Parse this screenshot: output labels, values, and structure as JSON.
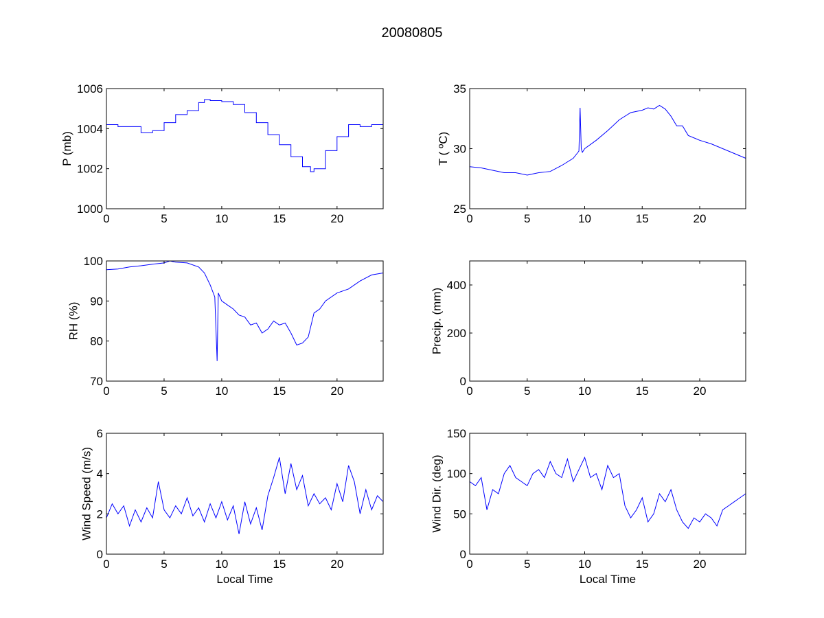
{
  "chart_data": [
    {
      "type": "line",
      "title": "20080805",
      "panels": [
        {
          "id": "pressure",
          "ylabel": "P (mb)",
          "xlabel": "",
          "xlim": [
            0,
            24
          ],
          "ylim": [
            1000,
            1006
          ],
          "xticks": [
            0,
            5,
            10,
            15,
            20
          ],
          "yticks": [
            1000,
            1002,
            1004,
            1006
          ],
          "x": [
            0,
            1,
            2,
            3,
            4,
            5,
            6,
            7,
            8,
            8.5,
            9,
            10,
            11,
            12,
            13,
            14,
            15,
            16,
            17,
            17.7,
            18,
            19,
            20,
            21,
            22,
            23,
            24
          ],
          "y": [
            1004.2,
            1004.1,
            1004.1,
            1003.8,
            1003.9,
            1004.3,
            1004.7,
            1004.9,
            1005.3,
            1005.45,
            1005.4,
            1005.35,
            1005.2,
            1004.8,
            1004.3,
            1003.7,
            1003.2,
            1002.6,
            1002.1,
            1001.85,
            1002.0,
            1002.9,
            1003.6,
            1004.2,
            1004.1,
            1004.2,
            1003.9
          ],
          "step": true
        },
        {
          "id": "temperature",
          "ylabel": "T ( ºC)",
          "xlabel": "",
          "xlim": [
            0,
            24
          ],
          "ylim": [
            25,
            35
          ],
          "xticks": [
            0,
            5,
            10,
            15,
            20
          ],
          "yticks": [
            25,
            30,
            35
          ],
          "x": [
            0,
            1,
            2,
            3,
            4,
            5,
            5.5,
            6,
            7,
            8,
            9,
            9.5,
            9.6,
            9.7,
            9.8,
            10,
            11,
            12,
            13,
            14,
            15,
            15.5,
            16,
            16.5,
            17,
            17.5,
            18,
            18.5,
            19,
            20,
            21,
            22,
            23,
            24
          ],
          "y": [
            28.5,
            28.4,
            28.2,
            28.0,
            28.0,
            27.8,
            27.9,
            28.0,
            28.1,
            28.6,
            29.2,
            29.8,
            33.4,
            30.0,
            29.7,
            30.0,
            30.7,
            31.5,
            32.4,
            33.0,
            33.2,
            33.4,
            33.3,
            33.6,
            33.3,
            32.7,
            31.9,
            31.9,
            31.1,
            30.7,
            30.4,
            30.0,
            29.6,
            29.2
          ]
        },
        {
          "id": "humidity",
          "ylabel": "RH (%)",
          "xlabel": "",
          "xlim": [
            0,
            24
          ],
          "ylim": [
            70,
            100
          ],
          "xticks": [
            0,
            5,
            10,
            15,
            20
          ],
          "yticks": [
            70,
            80,
            90,
            100
          ],
          "x": [
            0,
            1,
            2,
            3,
            4,
            5,
            5.5,
            6,
            7,
            8,
            8.5,
            9,
            9.4,
            9.6,
            9.7,
            10,
            10.5,
            11,
            11.5,
            12,
            12.5,
            13,
            13.5,
            14,
            14.5,
            15,
            15.5,
            16,
            16.5,
            17,
            17.5,
            18,
            18.5,
            19,
            20,
            21,
            22,
            23,
            24
          ],
          "y": [
            97.8,
            98.0,
            98.5,
            98.8,
            99.2,
            99.5,
            100,
            99.7,
            99.5,
            98.5,
            97,
            94,
            91,
            75,
            92,
            90,
            89,
            88,
            86.5,
            86,
            84,
            84.5,
            82,
            83,
            85,
            84,
            84.5,
            82,
            79,
            79.5,
            81,
            87,
            88,
            90,
            92,
            93,
            95,
            96.5,
            97
          ]
        },
        {
          "id": "precipitation",
          "ylabel": "Precip. (mm)",
          "xlabel": "",
          "xlim": [
            0,
            24
          ],
          "ylim": [
            0,
            500
          ],
          "xticks": [
            0,
            5,
            10,
            15,
            20
          ],
          "yticks": [
            0,
            200,
            400
          ],
          "x": [],
          "y": []
        },
        {
          "id": "wind-speed",
          "ylabel": "Wind Speed (m/s)",
          "xlabel": "Local Time",
          "xlim": [
            0,
            24
          ],
          "ylim": [
            0,
            6
          ],
          "xticks": [
            0,
            5,
            10,
            15,
            20
          ],
          "yticks": [
            0,
            2,
            4,
            6
          ],
          "x": [
            0,
            0.5,
            1,
            1.5,
            2,
            2.5,
            3,
            3.5,
            4,
            4.5,
            5,
            5.5,
            6,
            6.5,
            7,
            7.5,
            8,
            8.5,
            9,
            9.5,
            10,
            10.5,
            11,
            11.5,
            12,
            12.5,
            13,
            13.5,
            14,
            14.5,
            15,
            15.5,
            16,
            16.5,
            17,
            17.5,
            18,
            18.5,
            19,
            19.5,
            20,
            20.5,
            21,
            21.5,
            22,
            22.5,
            23,
            23.5,
            24
          ],
          "y": [
            1.8,
            2.5,
            2.0,
            2.4,
            1.4,
            2.2,
            1.6,
            2.3,
            1.8,
            3.6,
            2.2,
            1.8,
            2.4,
            2.0,
            2.8,
            1.9,
            2.3,
            1.6,
            2.5,
            1.8,
            2.6,
            1.7,
            2.4,
            1.0,
            2.6,
            1.5,
            2.3,
            1.2,
            2.9,
            3.8,
            4.8,
            3.0,
            4.5,
            3.2,
            3.9,
            2.4,
            3.0,
            2.5,
            2.8,
            2.2,
            3.5,
            2.6,
            4.4,
            3.6,
            2.0,
            3.2,
            2.2,
            2.9,
            2.6
          ]
        },
        {
          "id": "wind-direction",
          "ylabel": "Wind Dir. (deg)",
          "xlabel": "Local Time",
          "xlim": [
            0,
            24
          ],
          "ylim": [
            0,
            150
          ],
          "xticks": [
            0,
            5,
            10,
            15,
            20
          ],
          "yticks": [
            0,
            50,
            100,
            150
          ],
          "x": [
            0,
            0.5,
            1,
            1.5,
            2,
            2.5,
            3,
            3.5,
            4,
            4.5,
            5,
            5.5,
            6,
            6.5,
            7,
            7.5,
            8,
            8.5,
            9,
            9.5,
            10,
            10.5,
            11,
            11.5,
            12,
            12.5,
            13,
            13.5,
            14,
            14.5,
            15,
            15.5,
            16,
            16.5,
            17,
            17.5,
            18,
            18.5,
            19,
            19.5,
            20,
            20.5,
            21,
            21.5,
            22,
            22.5,
            23,
            23.5,
            24
          ],
          "y": [
            90,
            85,
            95,
            55,
            80,
            75,
            100,
            110,
            95,
            90,
            85,
            100,
            105,
            95,
            115,
            100,
            95,
            118,
            90,
            105,
            120,
            95,
            100,
            80,
            110,
            95,
            100,
            60,
            45,
            55,
            70,
            40,
            50,
            75,
            65,
            80,
            55,
            40,
            32,
            45,
            40,
            50,
            45,
            35,
            55,
            60,
            65,
            70,
            75
          ]
        }
      ]
    }
  ]
}
